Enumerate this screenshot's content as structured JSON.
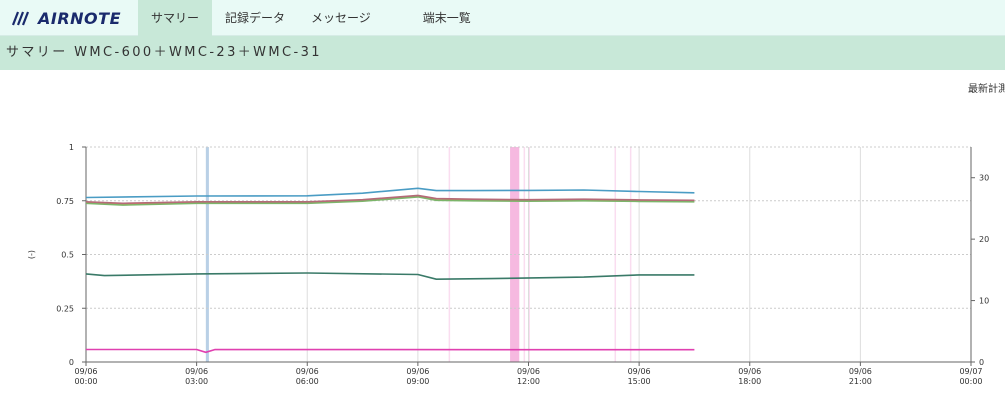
{
  "header": {
    "logo_text": "AIRNOTE",
    "nav": [
      {
        "label": "サマリー",
        "active": true
      },
      {
        "label": "記録データ",
        "active": false
      },
      {
        "label": "メッセージ",
        "active": false
      },
      {
        "label": "端末一覧",
        "active": false
      }
    ]
  },
  "page": {
    "subtitle": "サマリー WMC-600＋WMC-23＋WMC-31",
    "latest_label": "最新計測"
  },
  "chart_data": {
    "type": "line",
    "ylabel": "(-)",
    "ylim_left": [
      0,
      1
    ],
    "ylim_right": [
      0,
      35
    ],
    "xlim": [
      "09/06 00:00",
      "09/07 00:00"
    ],
    "left_ticks": [
      "0",
      "0.25",
      "0.5",
      "0.75",
      "1"
    ],
    "right_ticks": [
      "0",
      "10",
      "20",
      "30"
    ],
    "x_ticks": [
      {
        "date": "09/06",
        "time": "00:00"
      },
      {
        "date": "09/06",
        "time": "03:00"
      },
      {
        "date": "09/06",
        "time": "06:00"
      },
      {
        "date": "09/06",
        "time": "09:00"
      },
      {
        "date": "09/06",
        "time": "12:00"
      },
      {
        "date": "09/06",
        "time": "15:00"
      },
      {
        "date": "09/06",
        "time": "18:00"
      },
      {
        "date": "09/06",
        "time": "21:00"
      },
      {
        "date": "09/07",
        "time": "00:00"
      }
    ],
    "grid": true,
    "series": [
      {
        "color": "#4a9cc4",
        "axis": "left",
        "x": [
          "09/06 00:00",
          "09/06 03:00",
          "09/06 06:00",
          "09/06 07:30",
          "09/06 09:00",
          "09/06 09:30",
          "09/06 10:30",
          "09/06 12:00",
          "09/06 13:30",
          "09/06 15:00",
          "09/06 16:30"
        ],
        "y": [
          0.765,
          0.772,
          0.773,
          0.785,
          0.808,
          0.797,
          0.797,
          0.798,
          0.8,
          0.793,
          0.787
        ]
      },
      {
        "color": "#e8904a",
        "axis": "left",
        "x": [
          "09/06 00:00",
          "09/06 01:00",
          "09/06 03:00",
          "09/06 06:00",
          "09/06 07:30",
          "09/06 09:00",
          "09/06 09:30",
          "09/06 10:30",
          "09/06 12:00",
          "09/06 13:30",
          "09/06 15:00",
          "09/06 16:30"
        ],
        "y": [
          0.742,
          0.735,
          0.742,
          0.742,
          0.752,
          0.772,
          0.758,
          0.755,
          0.753,
          0.755,
          0.752,
          0.75
        ]
      },
      {
        "color": "#7cb56a",
        "axis": "left",
        "x": [
          "09/06 00:00",
          "09/06 01:00",
          "09/06 03:00",
          "09/06 06:00",
          "09/06 07:30",
          "09/06 09:00",
          "09/06 09:30",
          "09/06 10:30",
          "09/06 12:00",
          "09/06 13:30",
          "09/06 15:00",
          "09/06 16:30"
        ],
        "y": [
          0.738,
          0.73,
          0.738,
          0.738,
          0.748,
          0.768,
          0.752,
          0.75,
          0.748,
          0.75,
          0.747,
          0.745
        ]
      },
      {
        "color": "#b56a78",
        "axis": "left",
        "x": [
          "09/06 00:00",
          "09/06 01:00",
          "09/06 03:00",
          "09/06 06:00",
          "09/06 07:30",
          "09/06 09:00",
          "09/06 09:30",
          "09/06 10:30",
          "09/06 12:00",
          "09/06 13:30",
          "09/06 15:00",
          "09/06 16:30"
        ],
        "y": [
          0.745,
          0.738,
          0.745,
          0.745,
          0.755,
          0.775,
          0.76,
          0.757,
          0.755,
          0.757,
          0.754,
          0.752
        ]
      },
      {
        "color": "#3a7a68",
        "axis": "left",
        "x": [
          "09/06 00:00",
          "09/06 00:30",
          "09/06 03:00",
          "09/06 06:00",
          "09/06 09:00",
          "09/06 09:30",
          "09/06 11:00",
          "09/06 12:30",
          "09/06 13:30",
          "09/06 15:00",
          "09/06 16:30"
        ],
        "y": [
          0.41,
          0.402,
          0.41,
          0.414,
          0.407,
          0.385,
          0.388,
          0.392,
          0.395,
          0.405,
          0.405
        ]
      },
      {
        "color": "#e040b0",
        "axis": "left",
        "x": [
          "09/06 00:00",
          "09/06 03:00",
          "09/06 03:15",
          "09/06 03:30",
          "09/06 12:00",
          "09/06 16:30"
        ],
        "y": [
          0.058,
          0.058,
          0.045,
          0.058,
          0.057,
          0.057
        ]
      }
    ],
    "bands": [
      {
        "from": "09/06 03:15",
        "to": "09/06 03:20",
        "color": "#a8c4e0"
      },
      {
        "from": "09/06 11:30",
        "to": "09/06 11:45",
        "color": "#f4a8d8"
      },
      {
        "from": "09/06 09:50",
        "to": "09/06 09:52",
        "color": "#f9d4ec"
      },
      {
        "from": "09/06 11:52",
        "to": "09/06 11:54",
        "color": "#f9d4ec"
      },
      {
        "from": "09/06 12:00",
        "to": "09/06 12:02",
        "color": "#f9d4ec"
      },
      {
        "from": "09/06 14:20",
        "to": "09/06 14:22",
        "color": "#f9d4ec"
      },
      {
        "from": "09/06 14:45",
        "to": "09/06 14:47",
        "color": "#f9d4ec"
      }
    ]
  }
}
